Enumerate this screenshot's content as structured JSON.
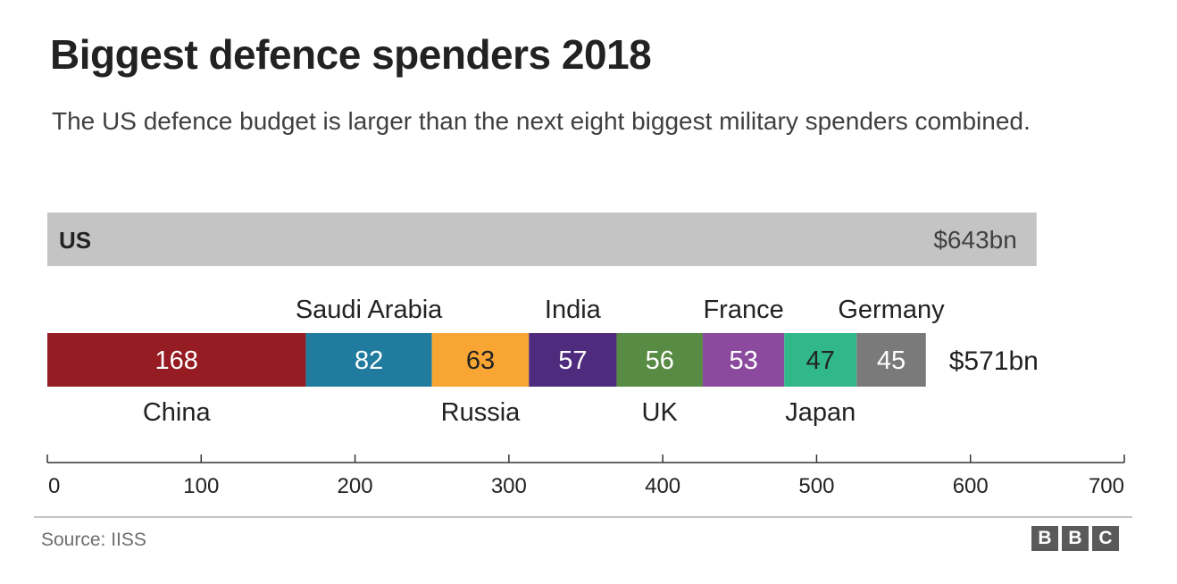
{
  "chart_data": {
    "type": "bar",
    "title": "Biggest defence spenders 2018",
    "subtitle": "The US defence budget is larger than the next eight biggest military spenders combined.",
    "xlim": [
      0,
      700
    ],
    "xticks": [
      0,
      100,
      200,
      300,
      400,
      500,
      600,
      700
    ],
    "grid": false,
    "us": {
      "label": "US",
      "value": 643,
      "value_label": "$643bn",
      "color": "#c4c4c4"
    },
    "stack_total_label": "$571bn",
    "stack": [
      {
        "name": "China",
        "value": 168,
        "color": "#951c22",
        "text_color": "#ffffff",
        "label_pos": "below"
      },
      {
        "name": "Saudi Arabia",
        "value": 82,
        "color": "#217b9e",
        "text_color": "#ffffff",
        "label_pos": "above"
      },
      {
        "name": "Russia",
        "value": 63,
        "color": "#f9a533",
        "text_color": "#222222",
        "label_pos": "below"
      },
      {
        "name": "India",
        "value": 57,
        "color": "#4f2b7d",
        "text_color": "#ffffff",
        "label_pos": "above"
      },
      {
        "name": "UK",
        "value": 56,
        "color": "#588b44",
        "text_color": "#ffffff",
        "label_pos": "below"
      },
      {
        "name": "France",
        "value": 53,
        "color": "#8c4a9f",
        "text_color": "#ffffff",
        "label_pos": "above"
      },
      {
        "name": "Japan",
        "value": 47,
        "color": "#30b88b",
        "text_color": "#222222",
        "label_pos": "below"
      },
      {
        "name": "Germany",
        "value": 45,
        "color": "#7a7a7a",
        "text_color": "#ffffff",
        "label_pos": "above"
      }
    ]
  },
  "footer": {
    "source": "Source: IISS",
    "logo_letters": [
      "B",
      "B",
      "C"
    ]
  }
}
